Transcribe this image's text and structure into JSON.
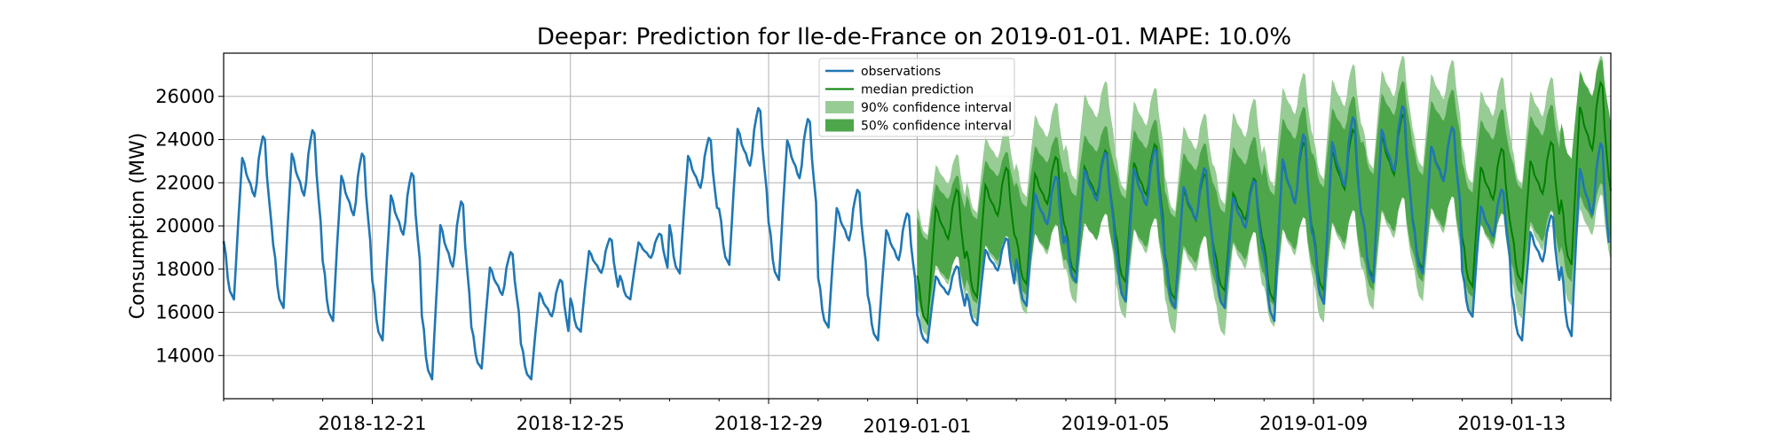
{
  "chart_data": {
    "type": "line",
    "title": "Deepar: Prediction for Ile-de-France on 2019-01-01. MAPE: 10.0%",
    "xlabel": "",
    "ylabel": "Consumption (MW)",
    "x_range": [
      "2018-12-18",
      "2019-01-15"
    ],
    "ylim": [
      12000,
      28000
    ],
    "grid": true,
    "legend_position": "top-center",
    "xticks": [
      "2018-12-21",
      "2018-12-25",
      "2018-12-29",
      "2019-01-01",
      "2019-01-05",
      "2019-01-09",
      "2019-01-13"
    ],
    "yticks": [
      14000,
      16000,
      18000,
      20000,
      22000,
      24000,
      26000
    ],
    "colors": {
      "observations": "#1f77b4",
      "median": "#008000",
      "ci90": "#98cc95",
      "ci50": "#4ea64b"
    },
    "legend": [
      {
        "label": "observations",
        "kind": "line",
        "color": "#1f77b4"
      },
      {
        "label": "median prediction",
        "kind": "line",
        "color": "#008000"
      },
      {
        "label": "90% confidence interval",
        "kind": "patch",
        "color": "#98cc95"
      },
      {
        "label": "50% confidence interval",
        "kind": "patch",
        "color": "#4ea64b"
      }
    ],
    "series": [
      {
        "name": "observations",
        "kind": "line",
        "date": [
          "2018-12-18",
          "2018-12-19",
          "2018-12-20",
          "2018-12-21",
          "2018-12-22",
          "2018-12-23",
          "2018-12-24",
          "2018-12-25",
          "2018-12-26",
          "2018-12-27",
          "2018-12-28",
          "2018-12-29",
          "2018-12-30",
          "2018-12-31",
          "2019-01-01",
          "2019-01-02",
          "2019-01-03",
          "2019-01-04",
          "2019-01-05",
          "2019-01-06",
          "2019-01-07",
          "2019-01-08",
          "2019-01-09",
          "2019-01-10",
          "2019-01-11",
          "2019-01-12",
          "2019-01-13",
          "2019-01-14"
        ],
        "daily_max": [
          24300,
          24600,
          23500,
          22600,
          21300,
          18900,
          17600,
          19500,
          19700,
          24200,
          25600,
          25100,
          21800,
          20700,
          18200,
          19500,
          22400,
          23500,
          23700,
          22800,
          22200,
          24400,
          25200,
          25700,
          24700,
          21800,
          20600,
          24000
        ],
        "daily_min": [
          16600,
          16200,
          15600,
          14700,
          12900,
          13400,
          12900,
          15100,
          16600,
          17800,
          18200,
          17500,
          15300,
          14700,
          14600,
          15400,
          16300,
          17400,
          16500,
          16200,
          16200,
          15600,
          16400,
          17400,
          17800,
          15800,
          14700,
          14900
        ]
      },
      {
        "name": "median prediction",
        "kind": "line",
        "date": [
          "2019-01-01",
          "2019-01-02",
          "2019-01-03",
          "2019-01-04",
          "2019-01-05",
          "2019-01-06",
          "2019-01-07",
          "2019-01-08",
          "2019-01-09",
          "2019-01-10",
          "2019-01-11",
          "2019-01-12",
          "2019-01-13",
          "2019-01-14",
          "2019-01-15"
        ],
        "daily_max": [
          21800,
          22800,
          23300,
          23600,
          23900,
          22500,
          22300,
          24000,
          24600,
          25300,
          24700,
          23700,
          24000,
          26800,
          26500
        ],
        "daily_min": [
          15500,
          16700,
          17300,
          17800,
          17400,
          16600,
          17000,
          16500,
          17000,
          17600,
          18000,
          17200,
          17400,
          18200,
          19000
        ]
      },
      {
        "name": "90% confidence interval",
        "kind": "band",
        "date": [
          "2019-01-01",
          "2019-01-02",
          "2019-01-03",
          "2019-01-04",
          "2019-01-05",
          "2019-01-06",
          "2019-01-07",
          "2019-01-08",
          "2019-01-09",
          "2019-01-10",
          "2019-01-11",
          "2019-01-12",
          "2019-01-13",
          "2019-01-14",
          "2019-01-15"
        ],
        "upper": [
          23400,
          24700,
          25800,
          26800,
          26500,
          25300,
          26000,
          27200,
          27600,
          28000,
          27800,
          27000,
          27000,
          28000,
          28000
        ],
        "lower": [
          14900,
          15600,
          15900,
          16400,
          15700,
          15000,
          14900,
          15300,
          15500,
          16100,
          16500,
          15800,
          15700,
          16300,
          16600
        ]
      },
      {
        "name": "50% confidence interval",
        "kind": "band",
        "date": [
          "2019-01-01",
          "2019-01-02",
          "2019-01-03",
          "2019-01-04",
          "2019-01-05",
          "2019-01-06",
          "2019-01-07",
          "2019-01-08",
          "2019-01-09",
          "2019-01-10",
          "2019-01-11",
          "2019-01-12",
          "2019-01-13",
          "2019-01-14",
          "2019-01-15"
        ],
        "upper": [
          22400,
          23500,
          24200,
          24700,
          25000,
          23900,
          24200,
          25600,
          26100,
          26800,
          26400,
          25500,
          25700,
          27800,
          27600
        ],
        "lower": [
          15600,
          16400,
          16800,
          17300,
          16700,
          16100,
          16200,
          16300,
          16500,
          17000,
          17400,
          16700,
          16800,
          17400,
          17800
        ]
      }
    ]
  }
}
